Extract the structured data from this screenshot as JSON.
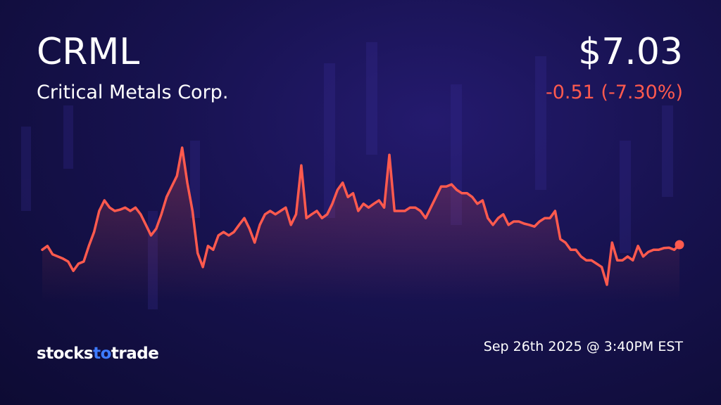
{
  "ticker": "CRML",
  "company": "Critical Metals Corp.",
  "price": "$7.03",
  "change": "-0.51 (-7.30%)",
  "timestamp": "Sep 26th 2025 @ 3:40PM EST",
  "logo": [
    "stocks",
    "to",
    "trade"
  ],
  "chart_data": {
    "type": "line",
    "color": "#ff5a4e",
    "values": [
      6.91,
      7.0,
      6.8,
      6.75,
      6.7,
      6.63,
      6.41,
      6.58,
      6.63,
      7.0,
      7.33,
      7.83,
      8.08,
      7.91,
      7.83,
      7.86,
      7.91,
      7.83,
      7.91,
      7.75,
      7.5,
      7.25,
      7.41,
      7.75,
      8.16,
      8.41,
      8.66,
      9.33,
      8.5,
      7.83,
      6.83,
      6.5,
      7.0,
      6.91,
      7.25,
      7.33,
      7.25,
      7.33,
      7.5,
      7.66,
      7.41,
      7.08,
      7.5,
      7.75,
      7.83,
      7.75,
      7.83,
      7.91,
      7.5,
      7.75,
      8.91,
      7.66,
      7.75,
      7.83,
      7.66,
      7.75,
      8.0,
      8.33,
      8.5,
      8.16,
      8.25,
      7.83,
      8.0,
      7.91,
      8.0,
      8.08,
      7.91,
      9.16,
      7.83,
      7.83,
      7.83,
      7.91,
      7.91,
      7.83,
      7.66,
      7.91,
      8.16,
      8.41,
      8.41,
      8.46,
      8.33,
      8.25,
      8.25,
      8.16,
      8.0,
      8.08,
      7.66,
      7.5,
      7.66,
      7.75,
      7.5,
      7.58,
      7.58,
      7.53,
      7.5,
      7.46,
      7.58,
      7.66,
      7.66,
      7.83,
      7.16,
      7.08,
      6.91,
      6.91,
      6.75,
      6.66,
      6.66,
      6.58,
      6.5,
      6.08,
      7.08,
      6.66,
      6.66,
      6.75,
      6.66,
      7.0,
      6.75,
      6.86,
      6.91,
      6.91,
      6.95,
      6.96,
      6.91,
      7.03
    ]
  }
}
